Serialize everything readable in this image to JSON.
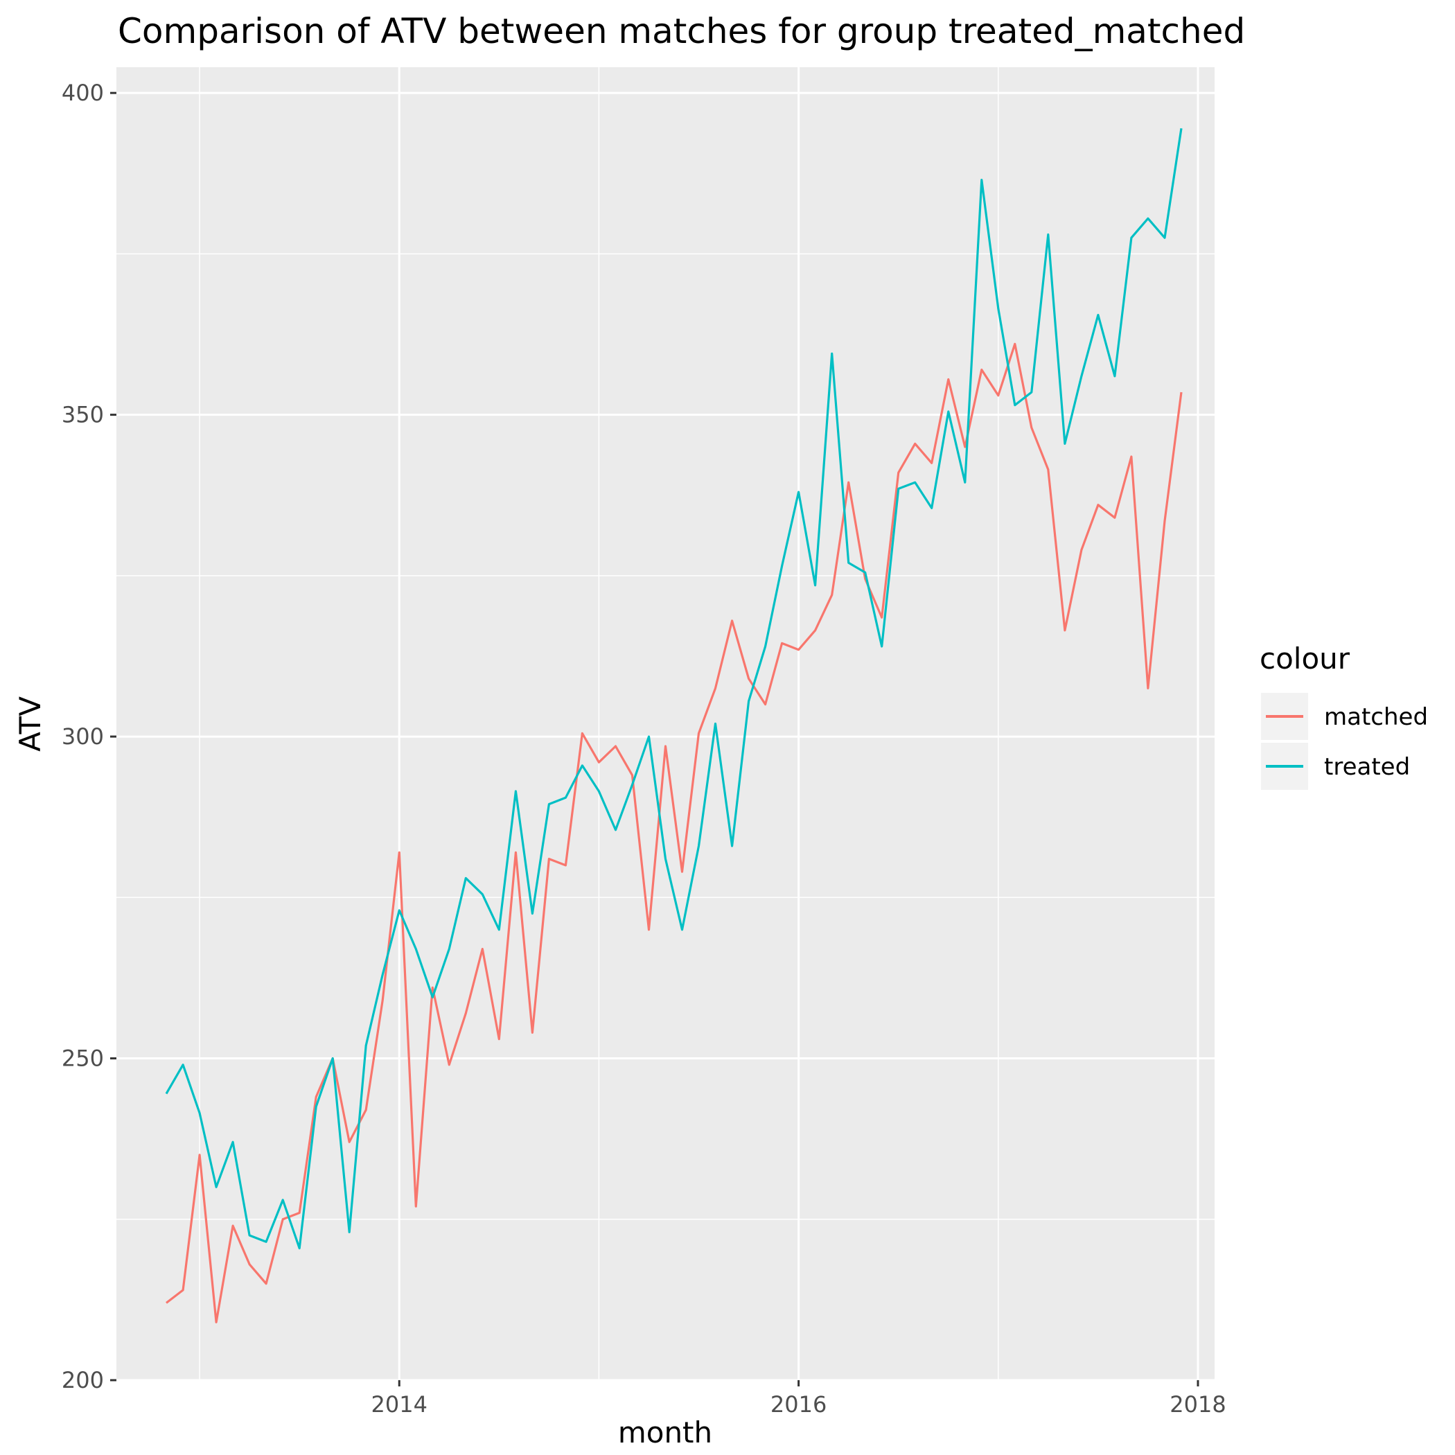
{
  "chart_data": {
    "type": "line",
    "title": "Comparison of ATV between matches for group treated_matched",
    "xlabel": "month",
    "ylabel": "ATV",
    "x_tick_labels": [
      "2014",
      "2016",
      "2018"
    ],
    "y_tick_labels": [
      "200",
      "250",
      "300",
      "350",
      "400"
    ],
    "x_start": "2012-11",
    "x_end": "2017-12",
    "xlim": [
      "2012-08",
      "2018-02"
    ],
    "ylim": [
      200,
      404
    ],
    "grid": true,
    "legend": {
      "title": "colour",
      "position": "right",
      "entries": [
        "matched",
        "treated"
      ]
    },
    "series": [
      {
        "name": "matched",
        "color": "#F8766D",
        "values": [
          212,
          214,
          235,
          209,
          224,
          218,
          215,
          225,
          226,
          244,
          250,
          237,
          242,
          259,
          282,
          227,
          261,
          249,
          257,
          267,
          253,
          282,
          254,
          281,
          280,
          300.5,
          296,
          298.5,
          294,
          270,
          298.5,
          279,
          300.5,
          307.5,
          318,
          309,
          305,
          314.5,
          313.5,
          316.5,
          322,
          339.5,
          324.5,
          318.5,
          341,
          345.5,
          342.5,
          355.5,
          345,
          357,
          353,
          361,
          348,
          341.5,
          316.5,
          329,
          336,
          334,
          343.5,
          307.5,
          333.5,
          353.5
        ]
      },
      {
        "name": "treated",
        "color": "#00BFC4",
        "values": [
          244.5,
          249,
          241.5,
          230,
          237,
          222.5,
          221.5,
          228,
          220.5,
          242.5,
          250,
          223,
          252,
          263,
          273,
          267,
          259.5,
          267,
          278,
          275.5,
          270,
          291.5,
          272.5,
          289.5,
          290.5,
          295.5,
          291.5,
          285.5,
          292.5,
          300,
          281,
          270,
          283,
          302,
          283,
          305.5,
          314,
          326.5,
          338,
          323.5,
          359.5,
          327,
          325.5,
          314,
          338.5,
          339.5,
          335.5,
          350.5,
          339.5,
          386.5,
          366.5,
          351.5,
          353.5,
          378,
          345.5,
          356,
          365.5,
          356,
          377.5,
          380.5,
          377.5,
          394.5
        ]
      }
    ]
  }
}
